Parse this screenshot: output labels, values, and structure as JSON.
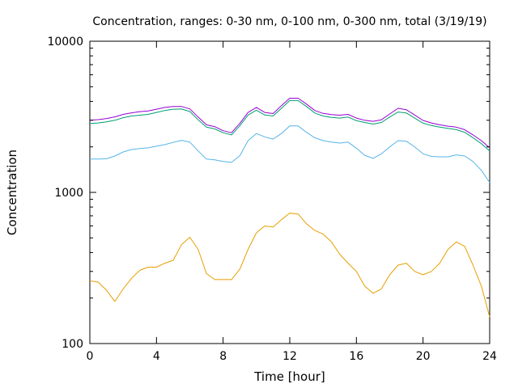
{
  "chart_data": {
    "type": "line",
    "title": "Concentration, ranges: 0-30 nm, 0-100 nm, 0-300 nm, total (3/19/19)",
    "xlabel": "Time [hour]",
    "ylabel": "Concentration",
    "xlim": [
      0,
      24
    ],
    "ylim": [
      100,
      10000
    ],
    "yscale": "log",
    "grid": false,
    "legend": "none",
    "x_ticks": [
      {
        "value": 0,
        "label": "0"
      },
      {
        "value": 4,
        "label": "4"
      },
      {
        "value": 8,
        "label": "8"
      },
      {
        "value": 12,
        "label": "12"
      },
      {
        "value": 16,
        "label": "16"
      },
      {
        "value": 20,
        "label": "20"
      },
      {
        "value": 24,
        "label": "24"
      }
    ],
    "y_ticks": [
      {
        "value": 100,
        "label": "100"
      },
      {
        "value": 1000,
        "label": "1000"
      },
      {
        "value": 10000,
        "label": "10000"
      }
    ],
    "series": [
      {
        "color": "#e69f00",
        "x": [
          0,
          0.5,
          1,
          1.5,
          2,
          2.5,
          3,
          3.5,
          4,
          4.5,
          5,
          5.5,
          6,
          6.5,
          7,
          7.5,
          8,
          8.5,
          9,
          9.5,
          10,
          10.5,
          11,
          11.5,
          12,
          12.5,
          13,
          13.5,
          14,
          14.5,
          15,
          15.5,
          16,
          16.5,
          17,
          17.5,
          18,
          18.5,
          19,
          19.5,
          20,
          20.5,
          21,
          21.5,
          22,
          22.5,
          23,
          23.5,
          24
        ],
        "y": [
          260,
          255,
          225,
          190,
          230,
          270,
          305,
          320,
          320,
          340,
          355,
          450,
          505,
          420,
          290,
          265,
          265,
          265,
          310,
          420,
          540,
          600,
          590,
          660,
          730,
          720,
          620,
          560,
          530,
          470,
          390,
          340,
          300,
          240,
          215,
          230,
          285,
          330,
          340,
          300,
          285,
          300,
          340,
          420,
          470,
          440,
          330,
          240,
          150
        ]
      },
      {
        "color": "#56b4e9",
        "x": [
          0,
          0.5,
          1,
          1.5,
          2,
          2.5,
          3,
          3.5,
          4,
          4.5,
          5,
          5.5,
          6,
          6.5,
          7,
          7.5,
          8,
          8.5,
          9,
          9.5,
          10,
          10.5,
          11,
          11.5,
          12,
          12.5,
          13,
          13.5,
          14,
          14.5,
          15,
          15.5,
          16,
          16.5,
          17,
          17.5,
          18,
          18.5,
          19,
          19.5,
          20,
          20.5,
          21,
          21.5,
          22,
          22.5,
          23,
          23.5,
          24
        ],
        "y": [
          1660,
          1660,
          1670,
          1740,
          1850,
          1920,
          1950,
          1970,
          2020,
          2070,
          2140,
          2210,
          2150,
          1880,
          1660,
          1640,
          1600,
          1580,
          1750,
          2200,
          2450,
          2330,
          2250,
          2450,
          2750,
          2750,
          2500,
          2300,
          2200,
          2150,
          2120,
          2150,
          1960,
          1760,
          1680,
          1800,
          2000,
          2200,
          2180,
          2000,
          1800,
          1730,
          1720,
          1720,
          1770,
          1740,
          1600,
          1400,
          1160
        ]
      },
      {
        "color": "#009e73",
        "x": [
          0,
          0.5,
          1,
          1.5,
          2,
          2.5,
          3,
          3.5,
          4,
          4.5,
          5,
          5.5,
          6,
          6.5,
          7,
          7.5,
          8,
          8.5,
          9,
          9.5,
          10,
          10.5,
          11,
          11.5,
          12,
          12.5,
          13,
          13.5,
          14,
          14.5,
          15,
          15.5,
          16,
          16.5,
          17,
          17.5,
          18,
          18.5,
          19,
          19.5,
          20,
          20.5,
          21,
          21.5,
          22,
          22.5,
          23,
          23.5,
          24
        ],
        "y": [
          2860,
          2880,
          2930,
          3000,
          3120,
          3200,
          3240,
          3280,
          3380,
          3480,
          3550,
          3560,
          3430,
          3020,
          2700,
          2630,
          2480,
          2400,
          2760,
          3250,
          3500,
          3250,
          3200,
          3600,
          4050,
          4050,
          3700,
          3350,
          3200,
          3130,
          3100,
          3150,
          2980,
          2900,
          2830,
          2900,
          3150,
          3400,
          3350,
          3100,
          2870,
          2770,
          2700,
          2650,
          2600,
          2500,
          2300,
          2100,
          1880
        ]
      },
      {
        "color": "#9400d3",
        "x": [
          0,
          0.5,
          1,
          1.5,
          2,
          2.5,
          3,
          3.5,
          4,
          4.5,
          5,
          5.5,
          6,
          6.5,
          7,
          7.5,
          8,
          8.5,
          9,
          9.5,
          10,
          10.5,
          11,
          11.5,
          12,
          12.5,
          13,
          13.5,
          14,
          14.5,
          15,
          15.5,
          16,
          16.5,
          17,
          17.5,
          18,
          18.5,
          19,
          19.5,
          20,
          20.5,
          21,
          21.5,
          22,
          22.5,
          23,
          23.5,
          24
        ],
        "y": [
          3000,
          3030,
          3080,
          3160,
          3280,
          3360,
          3420,
          3460,
          3550,
          3650,
          3700,
          3700,
          3570,
          3150,
          2800,
          2720,
          2560,
          2480,
          2860,
          3380,
          3650,
          3380,
          3320,
          3750,
          4200,
          4200,
          3840,
          3480,
          3330,
          3270,
          3240,
          3280,
          3100,
          3000,
          2950,
          3020,
          3300,
          3600,
          3520,
          3250,
          2990,
          2880,
          2800,
          2740,
          2700,
          2600,
          2400,
          2200,
          1970
        ]
      }
    ]
  }
}
